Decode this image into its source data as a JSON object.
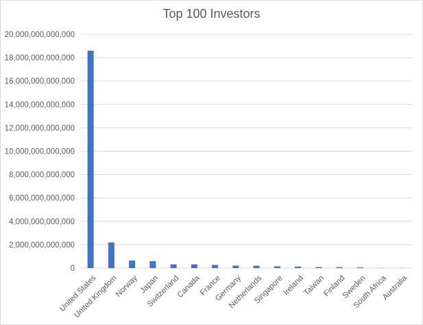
{
  "chart_data": {
    "type": "bar",
    "title": "Top 100 Investors",
    "xlabel": "",
    "ylabel": "",
    "categories": [
      "United States",
      "United Kingdom",
      "Norway",
      "Japan",
      "Switzerland",
      "Canada",
      "France",
      "Germany",
      "Netherlands",
      "Singapore",
      "Ireland",
      "Taiwan",
      "Finland",
      "Sweden",
      "South Africa",
      "Australia"
    ],
    "values": [
      18600000000000,
      2200000000000,
      650000000000,
      600000000000,
      320000000000,
      320000000000,
      270000000000,
      210000000000,
      200000000000,
      150000000000,
      130000000000,
      90000000000,
      80000000000,
      70000000000,
      15000000000,
      10000000000
    ],
    "ylim": [
      0,
      20000000000000
    ],
    "yticks": [
      "0",
      "2,000,000,000,000",
      "4,000,000,000,000",
      "6,000,000,000,000",
      "8,000,000,000,000",
      "10,000,000,000,000",
      "12,000,000,000,000",
      "14,000,000,000,000",
      "16,000,000,000,000",
      "18,000,000,000,000",
      "20,000,000,000,000"
    ],
    "grid": true,
    "legend": "none",
    "colors": {
      "bar": "#4472c4",
      "grid": "#d9d9d9",
      "text": "#595959"
    }
  }
}
